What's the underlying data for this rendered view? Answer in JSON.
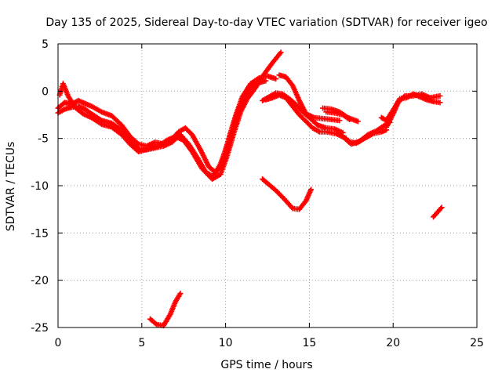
{
  "chart_data": {
    "type": "scatter",
    "title": "Day 135 of 2025, Sidereal Day-to-day VTEC variation (SDTVAR) for receiver igeo",
    "xlabel": "GPS time / hours",
    "ylabel": "SDTVAR / TECUs",
    "xlim": [
      0,
      25
    ],
    "ylim": [
      -25,
      5
    ],
    "xticks": [
      "0",
      "5",
      "10",
      "15",
      "20",
      "25"
    ],
    "yticks": [
      "5",
      "0",
      "-5",
      "-10",
      "-15",
      "-20",
      "-25"
    ],
    "grid": true,
    "marker_color": "#ff0000",
    "series": [
      {
        "name": "track-01",
        "points": [
          [
            0.0,
            -1.8
          ],
          [
            0.4,
            -1.2
          ],
          [
            0.8,
            -1.4
          ],
          [
            1.2,
            -1.0
          ],
          [
            1.6,
            -1.3
          ],
          [
            2.0,
            -1.6
          ],
          [
            2.6,
            -2.2
          ],
          [
            3.2,
            -2.6
          ],
          [
            3.8,
            -3.6
          ],
          [
            4.3,
            -4.8
          ],
          [
            4.8,
            -5.6
          ],
          [
            5.3,
            -5.8
          ],
          [
            5.8,
            -5.4
          ],
          [
            6.3,
            -5.6
          ],
          [
            6.8,
            -5.1
          ],
          [
            7.2,
            -4.3
          ],
          [
            7.6,
            -3.9
          ],
          [
            8.0,
            -4.6
          ],
          [
            8.5,
            -6.2
          ],
          [
            9.0,
            -8.0
          ],
          [
            9.4,
            -8.6
          ],
          [
            9.8,
            -7.4
          ],
          [
            10.2,
            -5.0
          ],
          [
            10.6,
            -2.6
          ],
          [
            11.0,
            -0.6
          ],
          [
            11.5,
            0.8
          ],
          [
            12.0,
            1.4
          ],
          [
            12.5,
            1.6
          ],
          [
            13.0,
            1.3
          ]
        ]
      },
      {
        "name": "track-02",
        "points": [
          [
            0.0,
            -2.3
          ],
          [
            0.4,
            -1.9
          ],
          [
            0.8,
            -1.7
          ],
          [
            1.2,
            -1.6
          ],
          [
            1.6,
            -1.9
          ],
          [
            2.0,
            -2.4
          ],
          [
            2.6,
            -3.1
          ],
          [
            3.2,
            -3.4
          ],
          [
            3.8,
            -4.1
          ],
          [
            4.3,
            -5.2
          ],
          [
            4.8,
            -6.1
          ],
          [
            5.3,
            -6.2
          ],
          [
            5.8,
            -6.0
          ],
          [
            6.3,
            -5.8
          ],
          [
            6.8,
            -5.4
          ],
          [
            7.3,
            -4.6
          ],
          [
            7.8,
            -5.6
          ],
          [
            8.3,
            -7.0
          ],
          [
            8.8,
            -8.5
          ],
          [
            9.2,
            -9.0
          ],
          [
            9.6,
            -8.2
          ],
          [
            10.0,
            -6.2
          ],
          [
            10.4,
            -3.8
          ],
          [
            10.8,
            -1.8
          ],
          [
            11.2,
            -0.4
          ],
          [
            11.6,
            0.6
          ],
          [
            12.0,
            0.9
          ],
          [
            12.4,
            1.1
          ]
        ]
      },
      {
        "name": "track-03",
        "points": [
          [
            0.1,
            -0.4
          ],
          [
            0.3,
            0.8
          ],
          [
            0.6,
            -0.5
          ],
          [
            1.0,
            -1.7
          ],
          [
            1.5,
            -2.4
          ],
          [
            2.0,
            -2.8
          ],
          [
            2.6,
            -3.5
          ],
          [
            3.2,
            -3.8
          ],
          [
            3.8,
            -4.6
          ],
          [
            4.3,
            -5.6
          ],
          [
            4.8,
            -6.4
          ],
          [
            5.4,
            -6.1
          ],
          [
            6.0,
            -5.8
          ],
          [
            6.5,
            -5.2
          ],
          [
            7.0,
            -4.8
          ],
          [
            7.5,
            -5.2
          ],
          [
            8.0,
            -6.4
          ],
          [
            8.6,
            -8.2
          ],
          [
            9.2,
            -9.3
          ],
          [
            9.7,
            -8.8
          ],
          [
            10.1,
            -6.8
          ],
          [
            10.5,
            -4.4
          ],
          [
            10.9,
            -2.2
          ],
          [
            11.3,
            -0.8
          ],
          [
            11.8,
            0.4
          ],
          [
            12.3,
            1.8
          ],
          [
            12.8,
            3.0
          ],
          [
            13.3,
            4.1
          ]
        ]
      },
      {
        "name": "track-04",
        "points": [
          [
            13.2,
            1.7
          ],
          [
            13.6,
            1.5
          ],
          [
            14.0,
            0.6
          ],
          [
            14.4,
            -1.0
          ],
          [
            14.8,
            -2.4
          ],
          [
            15.3,
            -2.8
          ],
          [
            15.8,
            -2.9
          ],
          [
            16.3,
            -3.0
          ],
          [
            16.8,
            -3.1
          ]
        ]
      },
      {
        "name": "track-05",
        "points": [
          [
            12.2,
            -1.0
          ],
          [
            12.6,
            -0.6
          ],
          [
            13.0,
            -0.2
          ],
          [
            13.4,
            -0.3
          ],
          [
            13.8,
            -0.8
          ],
          [
            14.2,
            -1.4
          ],
          [
            14.6,
            -2.2
          ],
          [
            15.0,
            -2.8
          ],
          [
            15.5,
            -3.6
          ],
          [
            16.0,
            -3.9
          ],
          [
            16.5,
            -4.0
          ],
          [
            17.0,
            -4.4
          ]
        ]
      },
      {
        "name": "track-06",
        "points": [
          [
            12.4,
            -0.9
          ],
          [
            12.8,
            -0.7
          ],
          [
            13.2,
            -0.4
          ],
          [
            13.6,
            -0.7
          ],
          [
            14.0,
            -1.6
          ],
          [
            14.4,
            -2.5
          ],
          [
            14.8,
            -3.2
          ],
          [
            15.2,
            -3.9
          ],
          [
            15.6,
            -4.3
          ],
          [
            16.0,
            -4.3
          ],
          [
            16.6,
            -4.5
          ],
          [
            17.2,
            -5.0
          ]
        ]
      },
      {
        "name": "track-07",
        "points": [
          [
            15.8,
            -1.8
          ],
          [
            16.3,
            -1.9
          ],
          [
            16.8,
            -2.2
          ],
          [
            17.3,
            -2.8
          ],
          [
            17.9,
            -3.2
          ]
        ]
      },
      {
        "name": "track-08",
        "points": [
          [
            16.0,
            -2.2
          ],
          [
            16.5,
            -2.3
          ],
          [
            17.0,
            -2.5
          ],
          [
            17.4,
            -3.0
          ]
        ]
      },
      {
        "name": "track-09",
        "points": [
          [
            17.0,
            -4.8
          ],
          [
            17.5,
            -5.6
          ],
          [
            18.0,
            -5.3
          ],
          [
            18.5,
            -4.6
          ],
          [
            19.0,
            -4.2
          ],
          [
            19.5,
            -3.6
          ],
          [
            19.8,
            -3.3
          ]
        ]
      },
      {
        "name": "track-10",
        "points": [
          [
            17.3,
            -5.3
          ],
          [
            17.8,
            -5.5
          ],
          [
            18.3,
            -5.0
          ],
          [
            18.8,
            -4.5
          ],
          [
            19.3,
            -4.3
          ],
          [
            19.6,
            -4.1
          ]
        ]
      },
      {
        "name": "track-11",
        "points": [
          [
            19.3,
            -2.8
          ],
          [
            19.6,
            -3.1
          ],
          [
            20.0,
            -2.0
          ],
          [
            20.4,
            -0.8
          ],
          [
            20.8,
            -0.7
          ],
          [
            21.2,
            -0.3
          ],
          [
            21.6,
            -0.6
          ],
          [
            22.0,
            -0.9
          ],
          [
            22.4,
            -1.1
          ],
          [
            22.8,
            -1.2
          ]
        ]
      },
      {
        "name": "track-12",
        "points": [
          [
            19.6,
            -3.8
          ],
          [
            20.0,
            -2.4
          ],
          [
            20.3,
            -1.2
          ],
          [
            20.7,
            -0.5
          ],
          [
            21.2,
            -0.5
          ],
          [
            21.7,
            -0.3
          ],
          [
            22.2,
            -0.7
          ],
          [
            22.8,
            -0.5
          ]
        ]
      },
      {
        "name": "track-13",
        "points": [
          [
            12.2,
            -9.3
          ],
          [
            12.6,
            -9.9
          ],
          [
            13.0,
            -10.5
          ],
          [
            13.5,
            -11.4
          ],
          [
            14.0,
            -12.4
          ],
          [
            14.4,
            -12.5
          ],
          [
            14.8,
            -11.6
          ],
          [
            15.1,
            -10.4
          ]
        ]
      },
      {
        "name": "track-14",
        "points": [
          [
            22.4,
            -13.3
          ],
          [
            22.9,
            -12.3
          ]
        ]
      },
      {
        "name": "track-15",
        "points": [
          [
            5.5,
            -24.1
          ],
          [
            5.9,
            -24.7
          ],
          [
            6.3,
            -24.8
          ],
          [
            6.7,
            -23.6
          ],
          [
            7.0,
            -22.3
          ],
          [
            7.3,
            -21.4
          ]
        ]
      }
    ]
  }
}
